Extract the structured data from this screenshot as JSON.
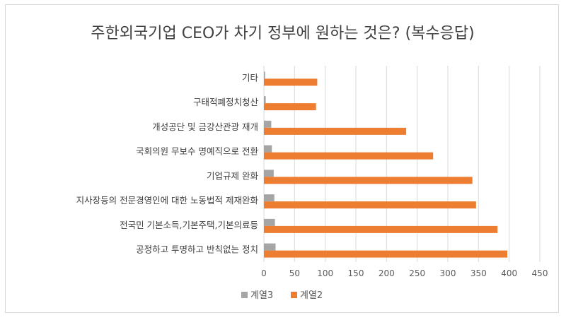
{
  "chart_data": {
    "type": "bar",
    "orientation": "horizontal",
    "title": "주한외국기업 CEO가 차기 정부에 원하는 것은? (복수응답)",
    "categories": [
      "기타",
      "구태적폐정치청산",
      "개성공단 및 금강산관광 재개",
      "국회의원 무보수 명예직으로 전환",
      "기업규제 완화",
      "지사장등의 전문경영인에 대한 노동법적 제재완화",
      "전국민 기본소득,기본주택,기본의료등",
      "공정하고 투명하고 반칙없는 정치"
    ],
    "series": [
      {
        "name": "계열3",
        "color": "#a5a5a5",
        "values": [
          2,
          3,
          12,
          13,
          16,
          17,
          18,
          19
        ]
      },
      {
        "name": "계열2",
        "color": "#ed7d31",
        "values": [
          87,
          85,
          232,
          276,
          340,
          346,
          381,
          397
        ]
      }
    ],
    "xlim": [
      0,
      450
    ],
    "xticks": [
      "0",
      "50",
      "100",
      "150",
      "200",
      "250",
      "300",
      "350",
      "400",
      "450"
    ],
    "grid": true,
    "legend_position": "bottom"
  }
}
